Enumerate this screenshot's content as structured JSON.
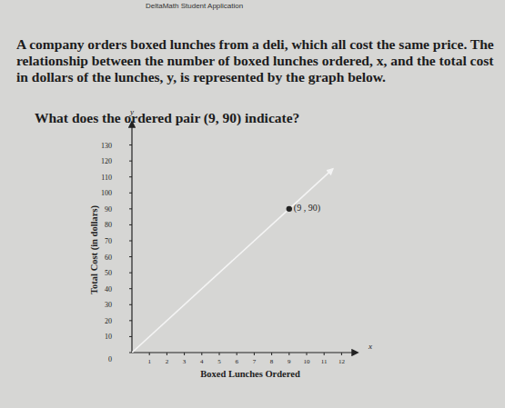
{
  "header": {
    "app": "DeltaMath Student Application"
  },
  "problem": {
    "text": "A company orders boxed lunches from a deli, which all cost the same price. The relationship between the number of boxed lunches ordered, x, and the total cost in dollars of the lunches, y, is represented by the graph below.",
    "question": "What does the ordered pair (9, 90) indicate?"
  },
  "chart_data": {
    "type": "line",
    "xlabel": "Boxed Lunches Ordered",
    "ylabel": "Total Cost (in dollars)",
    "x_var": "x",
    "y_var": "y",
    "x": [
      0,
      9,
      11.5
    ],
    "series": [
      {
        "color": "#f4f4f4",
        "values": [
          0,
          90,
          115
        ]
      }
    ],
    "xlim": [
      0,
      12.5
    ],
    "ylim": [
      0,
      140
    ],
    "xticks": [
      1,
      2,
      3,
      4,
      5,
      6,
      7,
      8,
      9,
      10,
      11,
      12
    ],
    "yticks": [
      0,
      10,
      20,
      30,
      40,
      50,
      60,
      70,
      80,
      90,
      100,
      110,
      120,
      130
    ],
    "annotations": [
      {
        "text": "(9 , 90)",
        "x": 9,
        "y": 90
      }
    ],
    "grid": false
  }
}
